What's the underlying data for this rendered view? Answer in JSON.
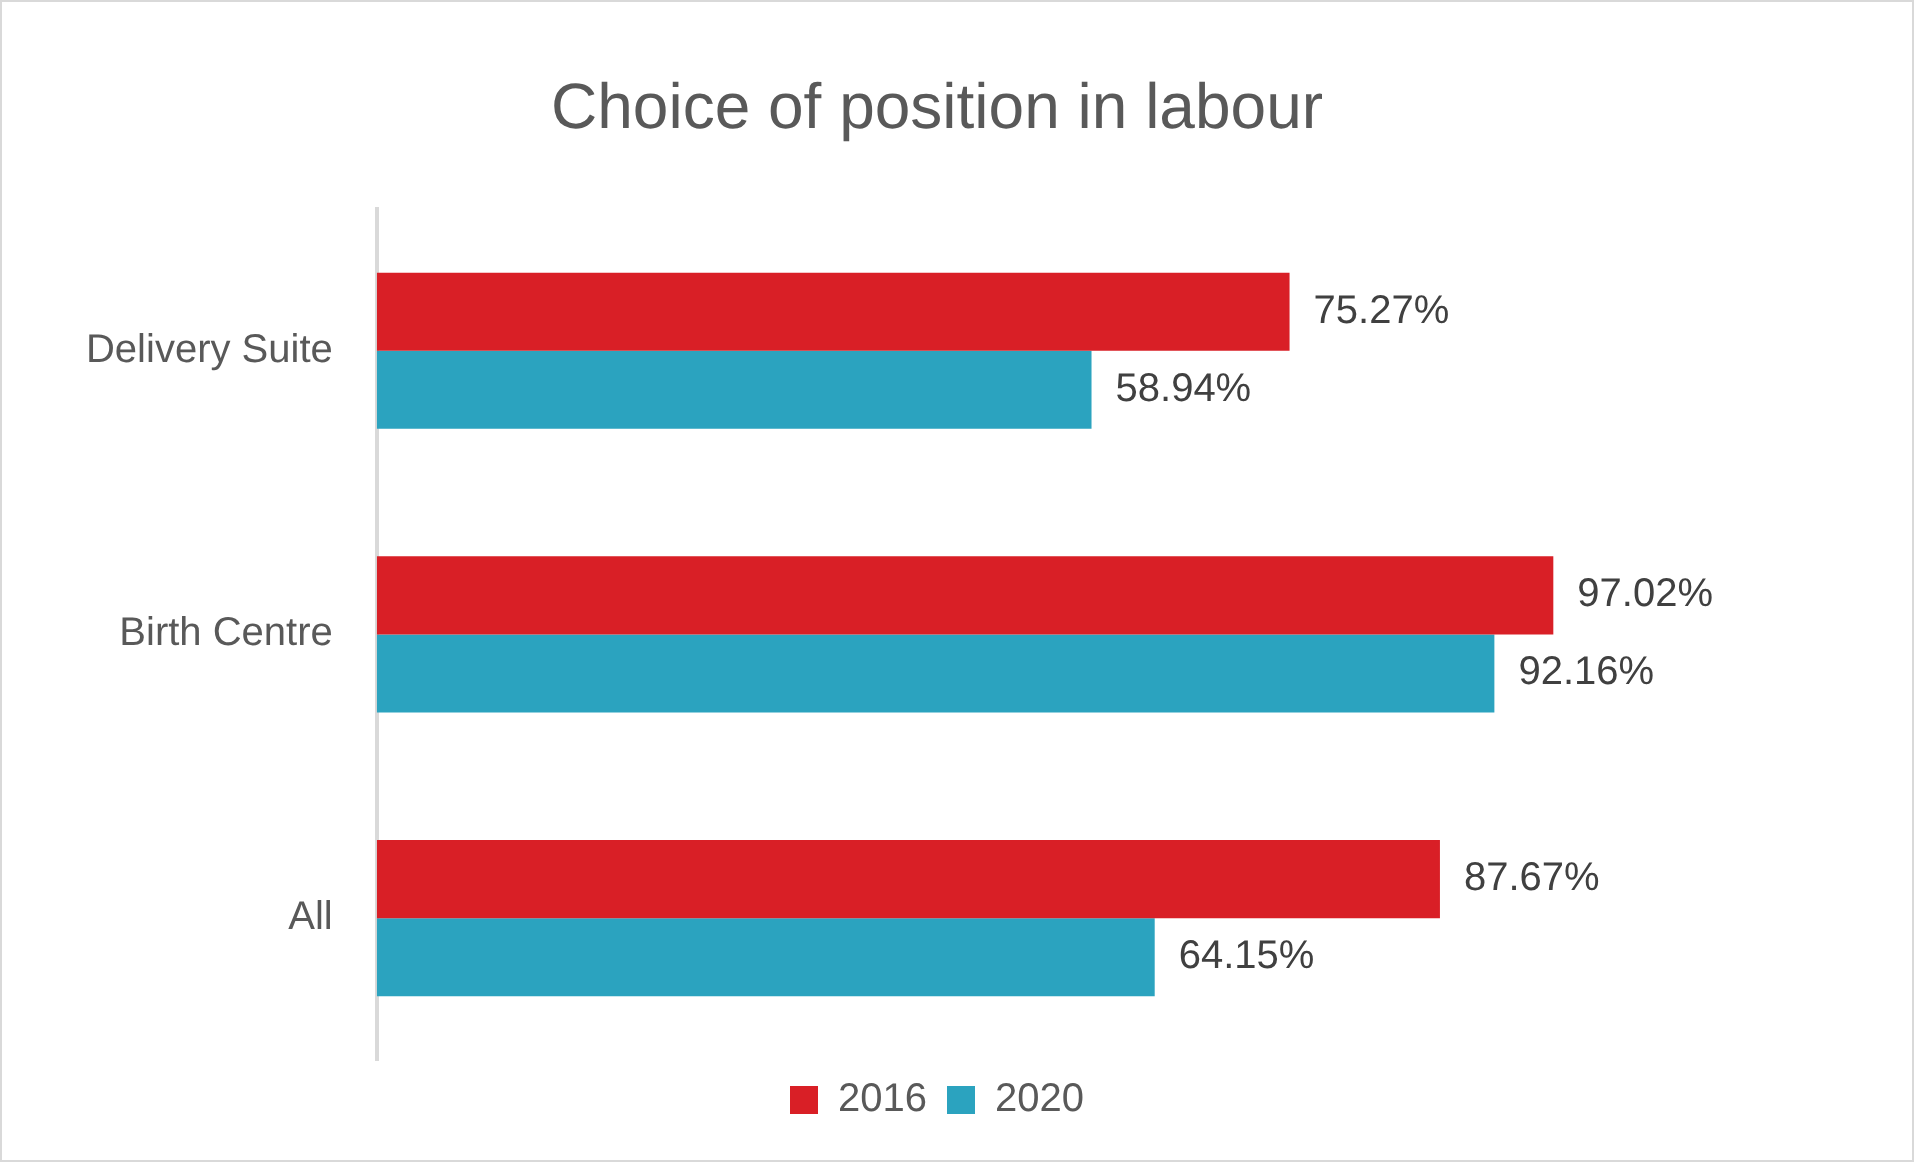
{
  "chart_data": {
    "type": "bar",
    "orientation": "horizontal",
    "title": "Choice of position in labour",
    "categories": [
      "Delivery Suite",
      "Birth Centre",
      "All"
    ],
    "series": [
      {
        "name": "2016",
        "color": "#d91f26",
        "values": [
          75.27,
          97.02,
          87.67
        ],
        "value_labels": [
          "75.27%",
          "97.02%",
          "87.67%"
        ]
      },
      {
        "name": "2020",
        "color": "#2ba3bf",
        "values": [
          58.94,
          92.16,
          64.15
        ],
        "value_labels": [
          "58.94%",
          "92.16%",
          "64.15%"
        ]
      }
    ],
    "legend": "bottom",
    "grid": false,
    "tick_labels": "y"
  }
}
